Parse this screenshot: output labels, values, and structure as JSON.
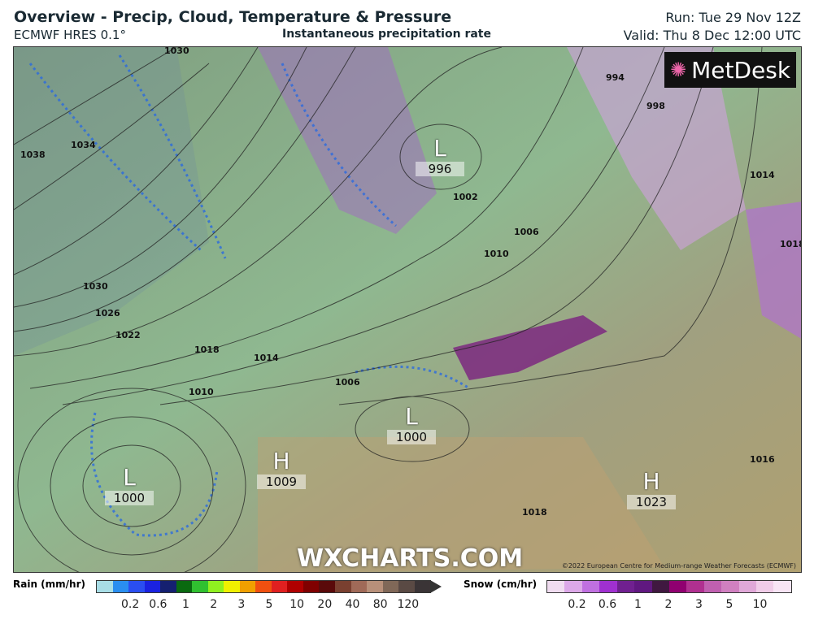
{
  "header": {
    "title": "Overview - Precip, Cloud, Temperature & Pressure",
    "model": "ECMWF HRES 0.1°",
    "subtitle": "Instantaneous precipitation rate",
    "run": "Run: Tue 29 Nov 12Z",
    "valid": "Valid: Thu 8 Dec 12:00 UTC"
  },
  "map": {
    "logo": "MetDesk",
    "watermark": "WXCHARTS.COM",
    "copyright": "©2022 European Centre for Medium-range Weather Forecasts (ECMWF)",
    "centers": [
      {
        "type": "L",
        "value": "996"
      },
      {
        "type": "L",
        "value": "1000"
      },
      {
        "type": "H",
        "value": "1009"
      },
      {
        "type": "L",
        "value": "1000"
      },
      {
        "type": "H",
        "value": "1023"
      }
    ],
    "isobar_labels": [
      "1030",
      "1034",
      "1038",
      "1030",
      "1026",
      "1022",
      "1018",
      "1014",
      "1010",
      "1006",
      "1006",
      "1010",
      "1002",
      "994",
      "998",
      "1014",
      "1018",
      "1018",
      "1016"
    ]
  },
  "legend": {
    "rain": {
      "label": "Rain (mm/hr)",
      "ticks": [
        "0.2",
        "0.6",
        "1",
        "2",
        "3",
        "5",
        "10",
        "20",
        "40",
        "80",
        "120"
      ],
      "colors": [
        "#a8dde6",
        "#2a8ef0",
        "#2a4ef0",
        "#1a22e0",
        "#152070",
        "#0a6a10",
        "#30c030",
        "#90f020",
        "#f0f000",
        "#f0a000",
        "#f05010",
        "#e02020",
        "#b00000",
        "#800000",
        "#5a0a0a",
        "#7a4030",
        "#a06a58",
        "#b8907a",
        "#806858",
        "#5a4a44",
        "#3a3436"
      ]
    },
    "snow": {
      "label": "Snow (cm/hr)",
      "ticks": [
        "0.2",
        "0.6",
        "1",
        "2",
        "3",
        "5",
        "10"
      ],
      "colors": [
        "#f0dcf0",
        "#dca8e8",
        "#c070e0",
        "#a030d0",
        "#702090",
        "#601880",
        "#401840",
        "#900070",
        "#b03090",
        "#c060b0",
        "#d080c0",
        "#e0a8d8",
        "#f0cce8",
        "#f8e4f4"
      ]
    }
  }
}
